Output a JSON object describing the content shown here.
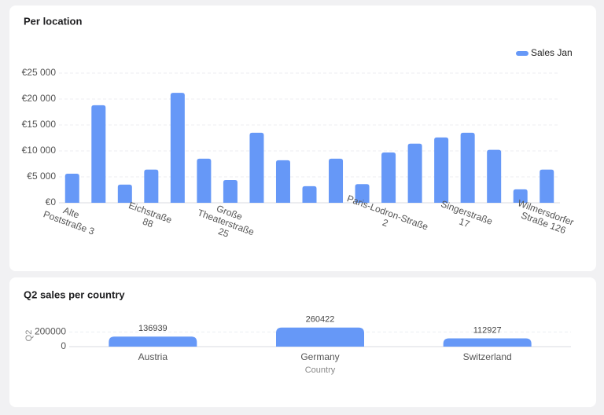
{
  "chart_data": [
    {
      "type": "bar",
      "title": "Per location",
      "categories": [
        "Alte Poststraße 3",
        null,
        null,
        "Eichstraße 88",
        null,
        null,
        "Große Theaterstraße 25",
        null,
        null,
        null,
        null,
        null,
        "Paris-Lodron-Straße 2",
        null,
        null,
        "Singerstraße 17",
        null,
        null,
        "Wilmersdorfer Straße 126"
      ],
      "series": [
        {
          "name": "Sales Jan",
          "color": "#6698f7",
          "values": [
            5600,
            18800,
            3500,
            6400,
            21200,
            8500,
            4400,
            13500,
            8200,
            3200,
            8500,
            3600,
            9700,
            11400,
            12600,
            13500,
            10200,
            2600,
            6400
          ]
        }
      ],
      "ylim": [
        0,
        25000
      ],
      "yticks": [
        {
          "value": 0,
          "label": "€0"
        },
        {
          "value": 5000,
          "label": "€5 000"
        },
        {
          "value": 10000,
          "label": "€10 000"
        },
        {
          "value": 15000,
          "label": "€15 000"
        },
        {
          "value": 20000,
          "label": "€20 000"
        },
        {
          "value": 25000,
          "label": "€25 000"
        }
      ],
      "grid": true,
      "legend": "top-right"
    },
    {
      "type": "bar",
      "title": "Q2 sales per country",
      "x_label": "Country",
      "y_label": "Q2",
      "categories": [
        "Austria",
        "Germany",
        "Switzerland"
      ],
      "series": [
        {
          "name": "Q2",
          "color": "#6698f7",
          "values": [
            136939,
            260422,
            112927
          ]
        }
      ],
      "ylim": [
        0,
        300000
      ],
      "yticks": [
        0,
        200000
      ],
      "grid": true,
      "show_values": true
    }
  ]
}
